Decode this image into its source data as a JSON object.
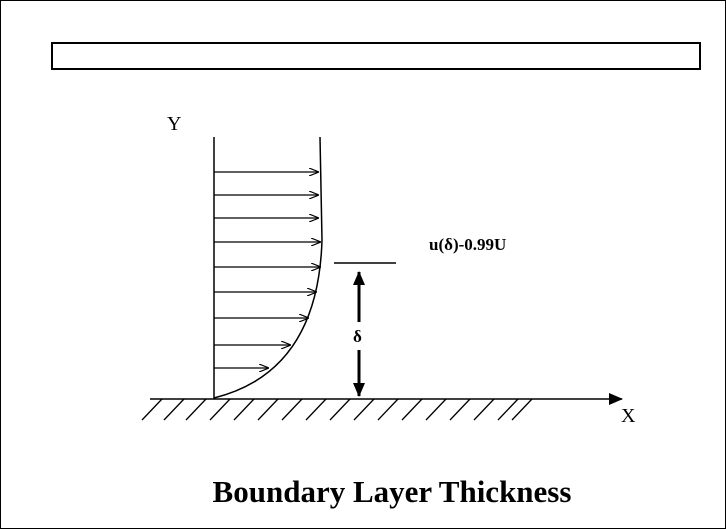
{
  "diagram": {
    "y_axis_label": "Y",
    "x_axis_label": "X",
    "velocity_condition_label": "u(δ)-0.99U",
    "thickness_symbol": "δ",
    "caption": "Boundary Layer Thickness",
    "title_box_text": ""
  }
}
